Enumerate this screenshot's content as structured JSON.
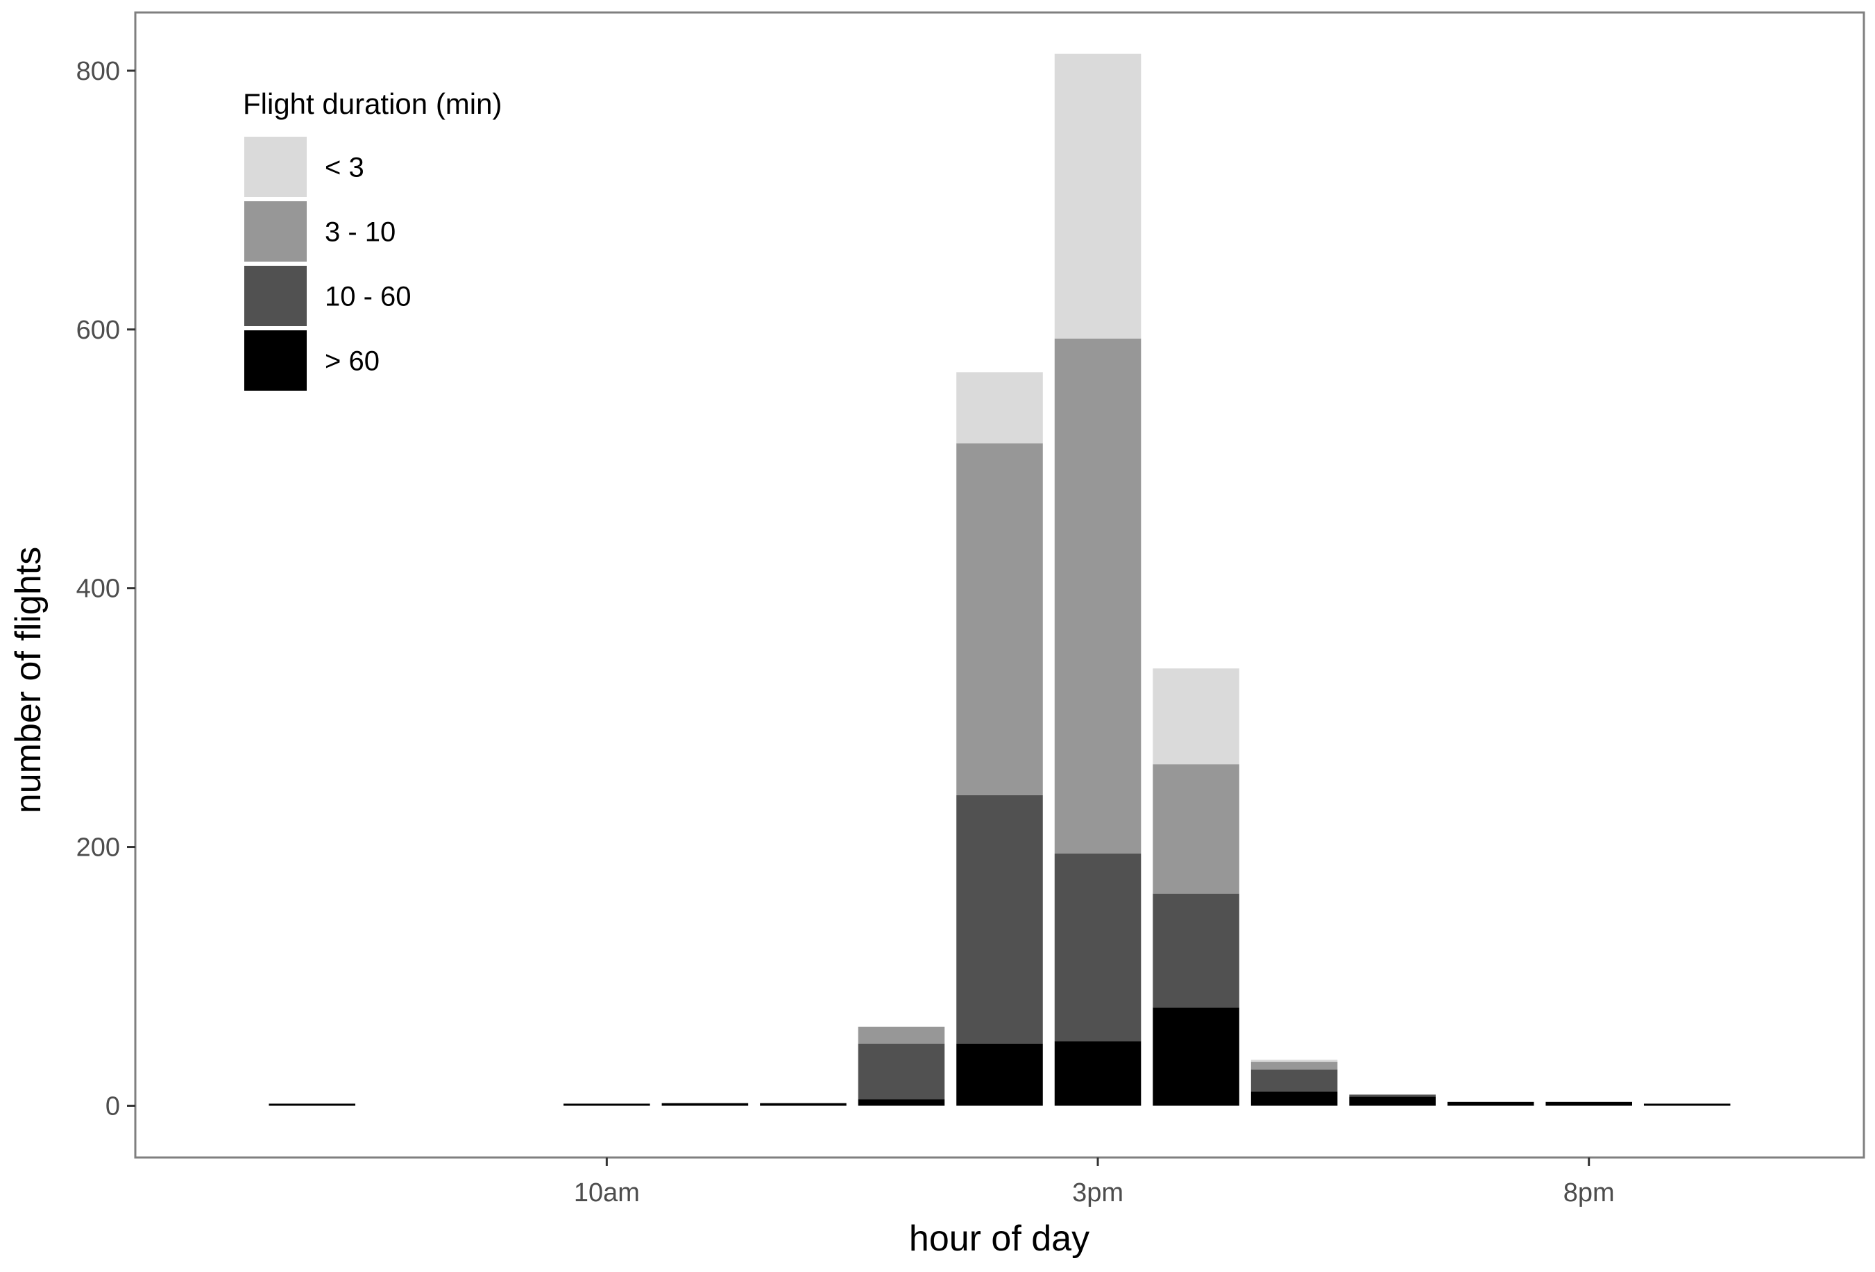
{
  "chart_data": {
    "type": "bar",
    "stacked": true,
    "x_label": "hour of day",
    "y_label": "number of flights",
    "x_ticks": [
      {
        "hour": 10,
        "label": "10am"
      },
      {
        "hour": 15,
        "label": "3pm"
      },
      {
        "hour": 20,
        "label": "8pm"
      }
    ],
    "y_ticks": [
      0,
      200,
      400,
      600,
      800
    ],
    "ylim": [
      -40,
      845
    ],
    "xlim": [
      5.2,
      22.8
    ],
    "grid": false,
    "legend_placement": "top-left",
    "legend_title": "Flight duration (min)",
    "hours": [
      7,
      10,
      11,
      12,
      13,
      14,
      15,
      16,
      17,
      18,
      19,
      20,
      21
    ],
    "series": [
      {
        "name": "> 60",
        "color": "#000000",
        "values": [
          1,
          1,
          2,
          2,
          5,
          48,
          50,
          76,
          11,
          7,
          3,
          3,
          1
        ]
      },
      {
        "name": "10 - 60",
        "color": "#515151",
        "values": [
          0,
          0,
          0,
          0,
          43,
          192,
          145,
          88,
          17,
          1,
          0,
          0,
          0
        ]
      },
      {
        "name": "3 - 10",
        "color": "#979797",
        "values": [
          0,
          0,
          0,
          0,
          13,
          272,
          398,
          100,
          6,
          0,
          0,
          0,
          0
        ]
      },
      {
        "name": "< 3",
        "color": "#dadada",
        "values": [
          0,
          0,
          0,
          0,
          0,
          55,
          220,
          74,
          1,
          0,
          0,
          0,
          0
        ]
      }
    ]
  }
}
